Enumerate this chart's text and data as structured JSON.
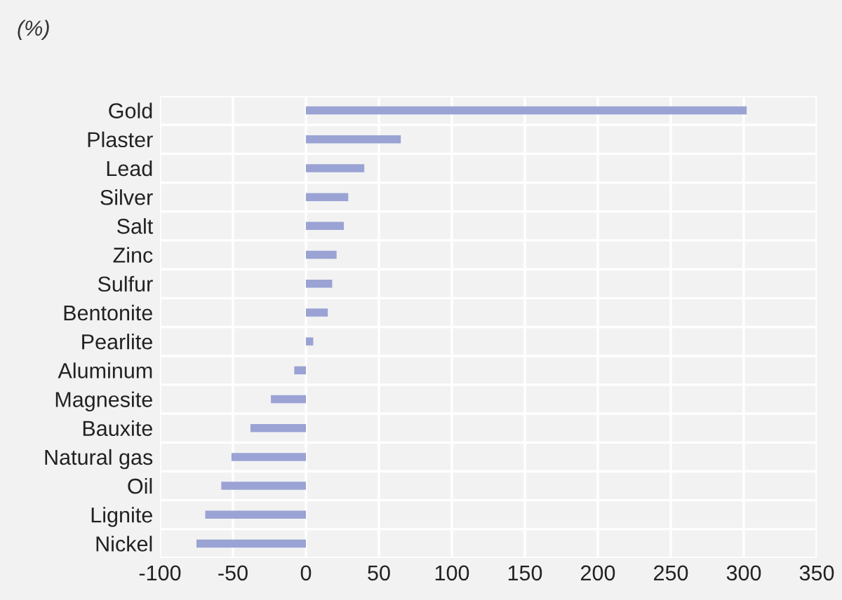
{
  "chart_data": {
    "type": "bar",
    "orientation": "horizontal",
    "ylabel": "(%)",
    "categories": [
      "Gold",
      "Plaster",
      "Lead",
      "Silver",
      "Salt",
      "Zinc",
      "Sulfur",
      "Bentonite",
      "Pearlite",
      "Aluminum",
      "Magnesite",
      "Bauxite",
      "Natural gas",
      "Oil",
      "Lignite",
      "Nickel"
    ],
    "series": [
      {
        "color": "#9aa3d4",
        "values": [
          302,
          65,
          40,
          29,
          26,
          21,
          18,
          15,
          5,
          -8,
          -24,
          -38,
          -51,
          -58,
          -69,
          -75
        ]
      }
    ],
    "xlim": [
      -100,
      350
    ],
    "xticks": [
      -100,
      -50,
      0,
      50,
      100,
      150,
      200,
      250,
      300,
      350
    ],
    "grid": true,
    "legend": false
  }
}
